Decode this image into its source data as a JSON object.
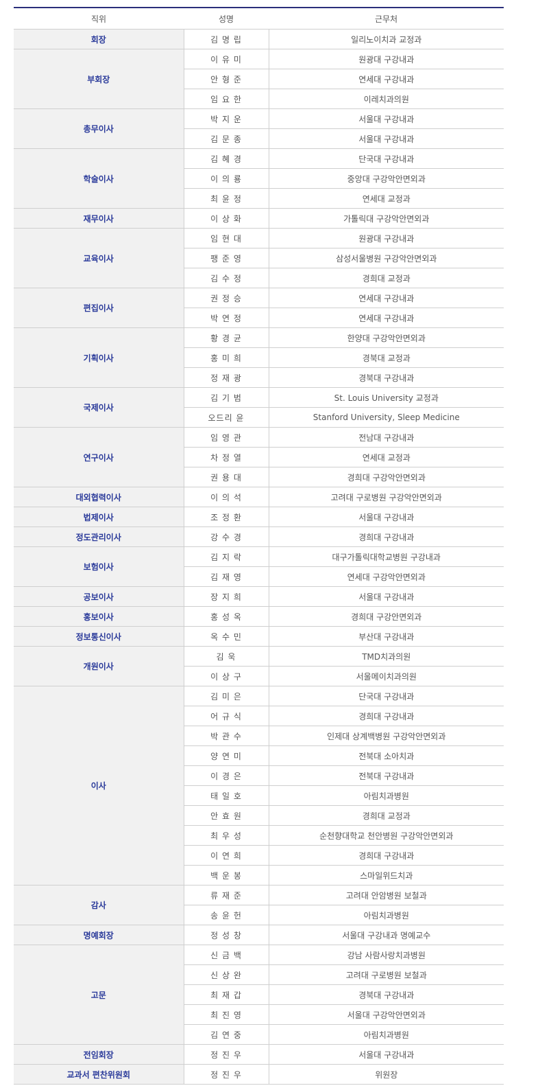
{
  "header": {
    "position": "직위",
    "name": "성명",
    "affiliation": "근무처"
  },
  "accent_color": "#2a3a9a",
  "groups": [
    {
      "title": "회장",
      "members": [
        {
          "name": "김 명 립",
          "affiliation": "일리노이치과 교정과"
        }
      ]
    },
    {
      "title": "부회장",
      "members": [
        {
          "name": "이 유 미",
          "affiliation": "원광대 구강내과"
        },
        {
          "name": "안 형 준",
          "affiliation": "연세대 구강내과"
        },
        {
          "name": "임 요 한",
          "affiliation": "이레치과의원"
        }
      ]
    },
    {
      "title": "총무이사",
      "members": [
        {
          "name": "박 지 운",
          "affiliation": "서울대 구강내과"
        },
        {
          "name": "김 문 종",
          "affiliation": "서울대 구강내과"
        }
      ]
    },
    {
      "title": "학술이사",
      "members": [
        {
          "name": "김 혜 경",
          "affiliation": "단국대 구강내과"
        },
        {
          "name": "이 의 룡",
          "affiliation": "중앙대 구강악안면외과"
        },
        {
          "name": "최 윤 정",
          "affiliation": "연세대 교정과"
        }
      ]
    },
    {
      "title": "재무이사",
      "members": [
        {
          "name": "이 상 화",
          "affiliation": "가톨릭대 구강악안면외과"
        }
      ]
    },
    {
      "title": "교육이사",
      "members": [
        {
          "name": "임 현 대",
          "affiliation": "원광대 구강내과"
        },
        {
          "name": "팽 준 영",
          "affiliation": "삼성서울병원 구강악안면외과"
        },
        {
          "name": "김 수 정",
          "affiliation": "경희대 교정과"
        }
      ]
    },
    {
      "title": "편집이사",
      "members": [
        {
          "name": "권 정 승",
          "affiliation": "연세대 구강내과"
        },
        {
          "name": "박 연 정",
          "affiliation": "연세대 구강내과"
        }
      ]
    },
    {
      "title": "기획이사",
      "members": [
        {
          "name": "황 경 균",
          "affiliation": "한양대 구강악안면외과"
        },
        {
          "name": "홍 미 희",
          "affiliation": "경북대 교정과"
        },
        {
          "name": "정 재 광",
          "affiliation": "경북대 구강내과"
        }
      ]
    },
    {
      "title": "국제이사",
      "members": [
        {
          "name": "김 기 범",
          "affiliation": "St. Louis University 교정과"
        },
        {
          "name": "오드리 윤",
          "affiliation": "Stanford University, Sleep Medicine"
        }
      ]
    },
    {
      "title": "연구이사",
      "members": [
        {
          "name": "임 영 관",
          "affiliation": "전남대 구강내과"
        },
        {
          "name": "차 정 열",
          "affiliation": "연세대 교정과"
        },
        {
          "name": "권 용 대",
          "affiliation": "경희대 구강악안면외과"
        }
      ]
    },
    {
      "title": "대외협력이사",
      "members": [
        {
          "name": "이 의 석",
          "affiliation": "고려대 구로병원 구강악안면외과"
        }
      ]
    },
    {
      "title": "법제이사",
      "members": [
        {
          "name": "조 정 환",
          "affiliation": "서울대 구강내과"
        }
      ]
    },
    {
      "title": "정도관리이사",
      "members": [
        {
          "name": "강 수 경",
          "affiliation": "경희대 구강내과"
        }
      ]
    },
    {
      "title": "보험이사",
      "members": [
        {
          "name": "김 지 락",
          "affiliation": "대구가톨릭대학교병원 구강내과"
        },
        {
          "name": "김 재 영",
          "affiliation": "연세대 구강악안면외과"
        }
      ]
    },
    {
      "title": "공보이사",
      "members": [
        {
          "name": "장 지 희",
          "affiliation": "서울대 구강내과"
        }
      ]
    },
    {
      "title": "홍보이사",
      "members": [
        {
          "name": "홍 성 옥",
          "affiliation": "경희대 구강안면외과"
        }
      ]
    },
    {
      "title": "정보통신이사",
      "members": [
        {
          "name": "옥 수 민",
          "affiliation": "부산대 구강내과"
        }
      ]
    },
    {
      "title": "개원이사",
      "members": [
        {
          "name": "김 욱",
          "affiliation": "TMD치과의원"
        },
        {
          "name": "이 상 구",
          "affiliation": "서울메이치과의원"
        }
      ]
    },
    {
      "title": "이사",
      "members": [
        {
          "name": "김 미 은",
          "affiliation": "단국대 구강내과"
        },
        {
          "name": "어 규 식",
          "affiliation": "경희대 구강내과"
        },
        {
          "name": "박 관 수",
          "affiliation": "인제대 상계백병원 구강악안면외과"
        },
        {
          "name": "양 연 미",
          "affiliation": "전북대 소아치과"
        },
        {
          "name": "이 경 은",
          "affiliation": "전북대 구강내과"
        },
        {
          "name": "태 일 호",
          "affiliation": "아림치과병원"
        },
        {
          "name": "안 효 원",
          "affiliation": "경희대 교정과"
        },
        {
          "name": "최 우 성",
          "affiliation": "순천향대학교 천안병원 구강악안면외과"
        },
        {
          "name": "이 연 희",
          "affiliation": "경희대 구강내과"
        },
        {
          "name": "백 운 봉",
          "affiliation": "스마일위드치과"
        }
      ]
    },
    {
      "title": "감사",
      "members": [
        {
          "name": "류 재 준",
          "affiliation": "고려대 안암병원 보철과"
        },
        {
          "name": "송 윤 헌",
          "affiliation": "아림치과병원"
        }
      ]
    },
    {
      "title": "명예회장",
      "members": [
        {
          "name": "정 성 창",
          "affiliation": "서울대 구강내과 명예교수"
        }
      ]
    },
    {
      "title": "고문",
      "members": [
        {
          "name": "신 금 백",
          "affiliation": "강남 사람사랑치과병원"
        },
        {
          "name": "신 상 완",
          "affiliation": "고려대 구로병원 보철과"
        },
        {
          "name": "최 재 갑",
          "affiliation": "경북대 구강내과"
        },
        {
          "name": "최 진 영",
          "affiliation": "서울대 구강악안면외과"
        },
        {
          "name": "김 연 중",
          "affiliation": "아림치과병원"
        }
      ]
    },
    {
      "title": "전임회장",
      "members": [
        {
          "name": "정 진 우",
          "affiliation": "서울대 구강내과"
        }
      ]
    },
    {
      "title": "교과서 편찬위원회",
      "members": [
        {
          "name": "정 진 우",
          "affiliation": "위원장"
        }
      ]
    }
  ]
}
